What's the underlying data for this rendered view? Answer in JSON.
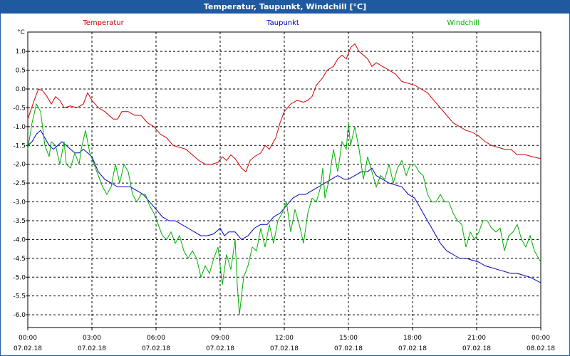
{
  "window": {
    "title": "Temperatur, Taupunkt, Windchill [°C]"
  },
  "chart_data": {
    "type": "line",
    "title": "Temperatur, Taupunkt, Windchill [°C]",
    "ylabel": "°C",
    "ylim": [
      -6.0,
      1.5
    ],
    "y_ticks": [
      "1.0",
      "0.5",
      "0.0",
      "-0.5",
      "-1.0",
      "-1.5",
      "-2.0",
      "-2.5",
      "-3.0",
      "-3.5",
      "-4.0",
      "-4.5",
      "-5.0",
      "-5.5",
      "-6.0"
    ],
    "x_ticks": [
      {
        "time": "00:00",
        "date": "07.02.18"
      },
      {
        "time": "03:00",
        "date": "07.02.18"
      },
      {
        "time": "06:00",
        "date": "07.02.18"
      },
      {
        "time": "09:00",
        "date": "07.02.18"
      },
      {
        "time": "12:00",
        "date": "07.02.18"
      },
      {
        "time": "15:00",
        "date": "07.02.18"
      },
      {
        "time": "18:00",
        "date": "07.02.18"
      },
      {
        "time": "21:00",
        "date": "07.02.18"
      },
      {
        "time": "00:00",
        "date": "08.02.18"
      }
    ],
    "x_unit": "hours since 07.02.18 00:00",
    "grid": true,
    "series": [
      {
        "name": "Temperatur",
        "color": "#d00000",
        "points": [
          [
            0,
            -0.8
          ],
          [
            0.3,
            -0.3
          ],
          [
            0.5,
            0.0
          ],
          [
            0.7,
            -0.05
          ],
          [
            0.9,
            -0.2
          ],
          [
            1.1,
            -0.4
          ],
          [
            1.3,
            -0.2
          ],
          [
            1.5,
            -0.3
          ],
          [
            1.7,
            -0.5
          ],
          [
            2.0,
            -0.45
          ],
          [
            2.3,
            -0.5
          ],
          [
            2.6,
            -0.4
          ],
          [
            2.8,
            -0.1
          ],
          [
            3.0,
            -0.3
          ],
          [
            3.3,
            -0.5
          ],
          [
            3.6,
            -0.6
          ],
          [
            4.0,
            -0.8
          ],
          [
            4.2,
            -0.8
          ],
          [
            4.4,
            -0.6
          ],
          [
            4.7,
            -0.6
          ],
          [
            5.0,
            -0.7
          ],
          [
            5.3,
            -0.7
          ],
          [
            5.6,
            -0.9
          ],
          [
            5.9,
            -1.0
          ],
          [
            6.2,
            -1.2
          ],
          [
            6.5,
            -1.3
          ],
          [
            6.8,
            -1.5
          ],
          [
            7.1,
            -1.55
          ],
          [
            7.4,
            -1.6
          ],
          [
            7.7,
            -1.75
          ],
          [
            8.0,
            -1.9
          ],
          [
            8.3,
            -2.0
          ],
          [
            8.6,
            -2.0
          ],
          [
            8.9,
            -1.95
          ],
          [
            9.1,
            -1.8
          ],
          [
            9.3,
            -1.9
          ],
          [
            9.5,
            -1.75
          ],
          [
            9.7,
            -1.85
          ],
          [
            10.0,
            -2.1
          ],
          [
            10.2,
            -2.2
          ],
          [
            10.4,
            -1.9
          ],
          [
            10.6,
            -1.8
          ],
          [
            10.9,
            -1.7
          ],
          [
            11.1,
            -1.5
          ],
          [
            11.3,
            -1.6
          ],
          [
            11.6,
            -1.3
          ],
          [
            11.8,
            -0.9
          ],
          [
            12.0,
            -0.6
          ],
          [
            12.3,
            -0.4
          ],
          [
            12.6,
            -0.3
          ],
          [
            12.9,
            -0.35
          ],
          [
            13.1,
            -0.3
          ],
          [
            13.3,
            -0.2
          ],
          [
            13.5,
            0.1
          ],
          [
            13.8,
            0.3
          ],
          [
            14.0,
            0.5
          ],
          [
            14.3,
            0.6
          ],
          [
            14.5,
            0.8
          ],
          [
            14.7,
            0.9
          ],
          [
            14.9,
            0.8
          ],
          [
            15.1,
            1.1
          ],
          [
            15.3,
            1.2
          ],
          [
            15.5,
            1.0
          ],
          [
            15.7,
            0.9
          ],
          [
            15.9,
            0.8
          ],
          [
            16.1,
            0.6
          ],
          [
            16.3,
            0.7
          ],
          [
            16.6,
            0.6
          ],
          [
            16.9,
            0.5
          ],
          [
            17.2,
            0.4
          ],
          [
            17.5,
            0.2
          ],
          [
            17.8,
            0.15
          ],
          [
            18.1,
            0.1
          ],
          [
            18.4,
            0.0
          ],
          [
            18.7,
            -0.1
          ],
          [
            19.0,
            -0.3
          ],
          [
            19.3,
            -0.5
          ],
          [
            19.6,
            -0.7
          ],
          [
            19.9,
            -0.9
          ],
          [
            20.2,
            -1.0
          ],
          [
            20.5,
            -1.1
          ],
          [
            20.8,
            -1.15
          ],
          [
            21.1,
            -1.25
          ],
          [
            21.4,
            -1.4
          ],
          [
            21.7,
            -1.5
          ],
          [
            22.0,
            -1.55
          ],
          [
            22.3,
            -1.6
          ],
          [
            22.6,
            -1.6
          ],
          [
            22.9,
            -1.75
          ],
          [
            23.3,
            -1.75
          ],
          [
            23.6,
            -1.8
          ],
          [
            24.0,
            -1.85
          ]
        ]
      },
      {
        "name": "Taupunkt",
        "color": "#0000c0",
        "points": [
          [
            0,
            -1.5
          ],
          [
            0.2,
            -1.4
          ],
          [
            0.4,
            -1.2
          ],
          [
            0.6,
            -1.1
          ],
          [
            0.8,
            -1.3
          ],
          [
            1.0,
            -1.5
          ],
          [
            1.2,
            -1.6
          ],
          [
            1.4,
            -1.5
          ],
          [
            1.6,
            -1.4
          ],
          [
            1.8,
            -1.5
          ],
          [
            2.0,
            -1.6
          ],
          [
            2.2,
            -1.7
          ],
          [
            2.4,
            -1.7
          ],
          [
            2.6,
            -1.6
          ],
          [
            2.8,
            -1.7
          ],
          [
            3.0,
            -1.8
          ],
          [
            3.3,
            -2.2
          ],
          [
            3.6,
            -2.4
          ],
          [
            3.9,
            -2.5
          ],
          [
            4.2,
            -2.6
          ],
          [
            4.5,
            -2.6
          ],
          [
            4.8,
            -2.6
          ],
          [
            5.1,
            -2.7
          ],
          [
            5.4,
            -2.8
          ],
          [
            5.7,
            -3.0
          ],
          [
            6.0,
            -3.2
          ],
          [
            6.3,
            -3.4
          ],
          [
            6.6,
            -3.5
          ],
          [
            6.9,
            -3.5
          ],
          [
            7.2,
            -3.6
          ],
          [
            7.5,
            -3.7
          ],
          [
            7.8,
            -3.8
          ],
          [
            8.1,
            -3.9
          ],
          [
            8.4,
            -3.9
          ],
          [
            8.7,
            -3.85
          ],
          [
            9.0,
            -3.7
          ],
          [
            9.2,
            -3.9
          ],
          [
            9.4,
            -3.8
          ],
          [
            9.7,
            -3.8
          ],
          [
            10.0,
            -4.0
          ],
          [
            10.3,
            -3.9
          ],
          [
            10.6,
            -3.7
          ],
          [
            10.9,
            -3.6
          ],
          [
            11.2,
            -3.6
          ],
          [
            11.5,
            -3.4
          ],
          [
            11.8,
            -3.3
          ],
          [
            12.1,
            -3.1
          ],
          [
            12.4,
            -2.9
          ],
          [
            12.7,
            -2.8
          ],
          [
            13.0,
            -2.8
          ],
          [
            13.3,
            -2.7
          ],
          [
            13.6,
            -2.6
          ],
          [
            13.9,
            -2.5
          ],
          [
            14.2,
            -2.4
          ],
          [
            14.5,
            -2.3
          ],
          [
            14.8,
            -2.4
          ],
          [
            15.0,
            -2.4
          ],
          [
            15.3,
            -2.3
          ],
          [
            15.6,
            -2.2
          ],
          [
            15.9,
            -2.2
          ],
          [
            16.1,
            -2.1
          ],
          [
            16.3,
            -2.3
          ],
          [
            16.6,
            -2.4
          ],
          [
            16.9,
            -2.5
          ],
          [
            17.2,
            -2.55
          ],
          [
            17.5,
            -2.6
          ],
          [
            17.8,
            -2.8
          ],
          [
            18.1,
            -2.9
          ],
          [
            18.4,
            -3.2
          ],
          [
            18.7,
            -3.5
          ],
          [
            19.0,
            -3.8
          ],
          [
            19.3,
            -4.1
          ],
          [
            19.6,
            -4.3
          ],
          [
            19.9,
            -4.4
          ],
          [
            20.2,
            -4.5
          ],
          [
            20.5,
            -4.5
          ],
          [
            20.8,
            -4.55
          ],
          [
            21.1,
            -4.6
          ],
          [
            21.4,
            -4.7
          ],
          [
            21.7,
            -4.75
          ],
          [
            22.0,
            -4.8
          ],
          [
            22.3,
            -4.85
          ],
          [
            22.6,
            -4.9
          ],
          [
            22.9,
            -4.9
          ],
          [
            23.2,
            -4.95
          ],
          [
            23.5,
            -5.0
          ],
          [
            24.0,
            -5.15
          ]
        ]
      },
      {
        "name": "Windchill",
        "color": "#00b000",
        "points": [
          [
            0,
            -1.6
          ],
          [
            0.2,
            -0.9
          ],
          [
            0.4,
            -0.4
          ],
          [
            0.6,
            -0.6
          ],
          [
            0.8,
            -1.5
          ],
          [
            1.0,
            -1.8
          ],
          [
            1.1,
            -1.4
          ],
          [
            1.3,
            -1.5
          ],
          [
            1.5,
            -2.0
          ],
          [
            1.7,
            -1.4
          ],
          [
            1.8,
            -2.0
          ],
          [
            2.0,
            -2.1
          ],
          [
            2.2,
            -1.7
          ],
          [
            2.4,
            -2.0
          ],
          [
            2.5,
            -1.6
          ],
          [
            2.7,
            -1.1
          ],
          [
            2.9,
            -1.7
          ],
          [
            3.1,
            -2.0
          ],
          [
            3.3,
            -2.3
          ],
          [
            3.5,
            -2.6
          ],
          [
            3.7,
            -2.8
          ],
          [
            3.9,
            -2.6
          ],
          [
            4.1,
            -2.0
          ],
          [
            4.3,
            -2.5
          ],
          [
            4.5,
            -2.0
          ],
          [
            4.7,
            -2.2
          ],
          [
            4.9,
            -2.8
          ],
          [
            5.1,
            -3.0
          ],
          [
            5.3,
            -2.8
          ],
          [
            5.5,
            -2.8
          ],
          [
            5.7,
            -3.1
          ],
          [
            5.9,
            -3.3
          ],
          [
            6.1,
            -3.6
          ],
          [
            6.3,
            -3.9
          ],
          [
            6.5,
            -4.0
          ],
          [
            6.7,
            -3.8
          ],
          [
            6.9,
            -4.1
          ],
          [
            7.1,
            -3.9
          ],
          [
            7.3,
            -4.3
          ],
          [
            7.5,
            -4.5
          ],
          [
            7.7,
            -4.3
          ],
          [
            7.9,
            -4.5
          ],
          [
            8.1,
            -5.0
          ],
          [
            8.3,
            -4.7
          ],
          [
            8.5,
            -4.9
          ],
          [
            8.7,
            -4.5
          ],
          [
            8.9,
            -4.2
          ],
          [
            9.1,
            -5.2
          ],
          [
            9.3,
            -4.4
          ],
          [
            9.5,
            -4.8
          ],
          [
            9.7,
            -4.0
          ],
          [
            9.8,
            -5.2
          ],
          [
            9.9,
            -6.0
          ],
          [
            10.1,
            -5.0
          ],
          [
            10.3,
            -4.7
          ],
          [
            10.5,
            -4.2
          ],
          [
            10.7,
            -4.3
          ],
          [
            10.9,
            -3.7
          ],
          [
            11.1,
            -4.2
          ],
          [
            11.3,
            -3.6
          ],
          [
            11.5,
            -4.1
          ],
          [
            11.7,
            -3.5
          ],
          [
            11.9,
            -3.3
          ],
          [
            12.1,
            -3.0
          ],
          [
            12.3,
            -3.8
          ],
          [
            12.5,
            -3.2
          ],
          [
            12.7,
            -3.6
          ],
          [
            12.9,
            -4.1
          ],
          [
            13.1,
            -3.3
          ],
          [
            13.3,
            -2.9
          ],
          [
            13.5,
            -3.0
          ],
          [
            13.7,
            -2.6
          ],
          [
            13.8,
            -2.1
          ],
          [
            13.9,
            -2.9
          ],
          [
            14.1,
            -2.4
          ],
          [
            14.3,
            -1.6
          ],
          [
            14.5,
            -2.2
          ],
          [
            14.7,
            -1.4
          ],
          [
            14.9,
            -1.6
          ],
          [
            15.0,
            -0.9
          ],
          [
            15.1,
            -1.5
          ],
          [
            15.3,
            -1.0
          ],
          [
            15.5,
            -1.6
          ],
          [
            15.7,
            -2.4
          ],
          [
            15.9,
            -1.8
          ],
          [
            16.1,
            -2.2
          ],
          [
            16.3,
            -2.6
          ],
          [
            16.5,
            -2.3
          ],
          [
            16.7,
            -2.4
          ],
          [
            16.9,
            -2.0
          ],
          [
            17.1,
            -2.5
          ],
          [
            17.3,
            -2.1
          ],
          [
            17.5,
            -1.9
          ],
          [
            17.7,
            -2.3
          ],
          [
            17.9,
            -2.0
          ],
          [
            18.1,
            -2.0
          ],
          [
            18.3,
            -2.2
          ],
          [
            18.5,
            -2.3
          ],
          [
            18.7,
            -2.8
          ],
          [
            18.9,
            -3.0
          ],
          [
            19.1,
            -3.0
          ],
          [
            19.3,
            -2.8
          ],
          [
            19.5,
            -3.0
          ],
          [
            19.7,
            -3.0
          ],
          [
            19.9,
            -3.3
          ],
          [
            20.1,
            -3.5
          ],
          [
            20.3,
            -3.6
          ],
          [
            20.5,
            -4.2
          ],
          [
            20.7,
            -3.8
          ],
          [
            20.9,
            -4.0
          ],
          [
            21.1,
            -3.8
          ],
          [
            21.3,
            -3.5
          ],
          [
            21.5,
            -3.5
          ],
          [
            21.7,
            -3.7
          ],
          [
            21.9,
            -3.8
          ],
          [
            22.1,
            -3.7
          ],
          [
            22.3,
            -4.3
          ],
          [
            22.5,
            -3.9
          ],
          [
            22.7,
            -3.8
          ],
          [
            22.9,
            -3.6
          ],
          [
            23.1,
            -4.0
          ],
          [
            23.3,
            -4.2
          ],
          [
            23.5,
            -3.9
          ],
          [
            23.7,
            -4.3
          ],
          [
            24.0,
            -4.6
          ]
        ]
      }
    ]
  }
}
